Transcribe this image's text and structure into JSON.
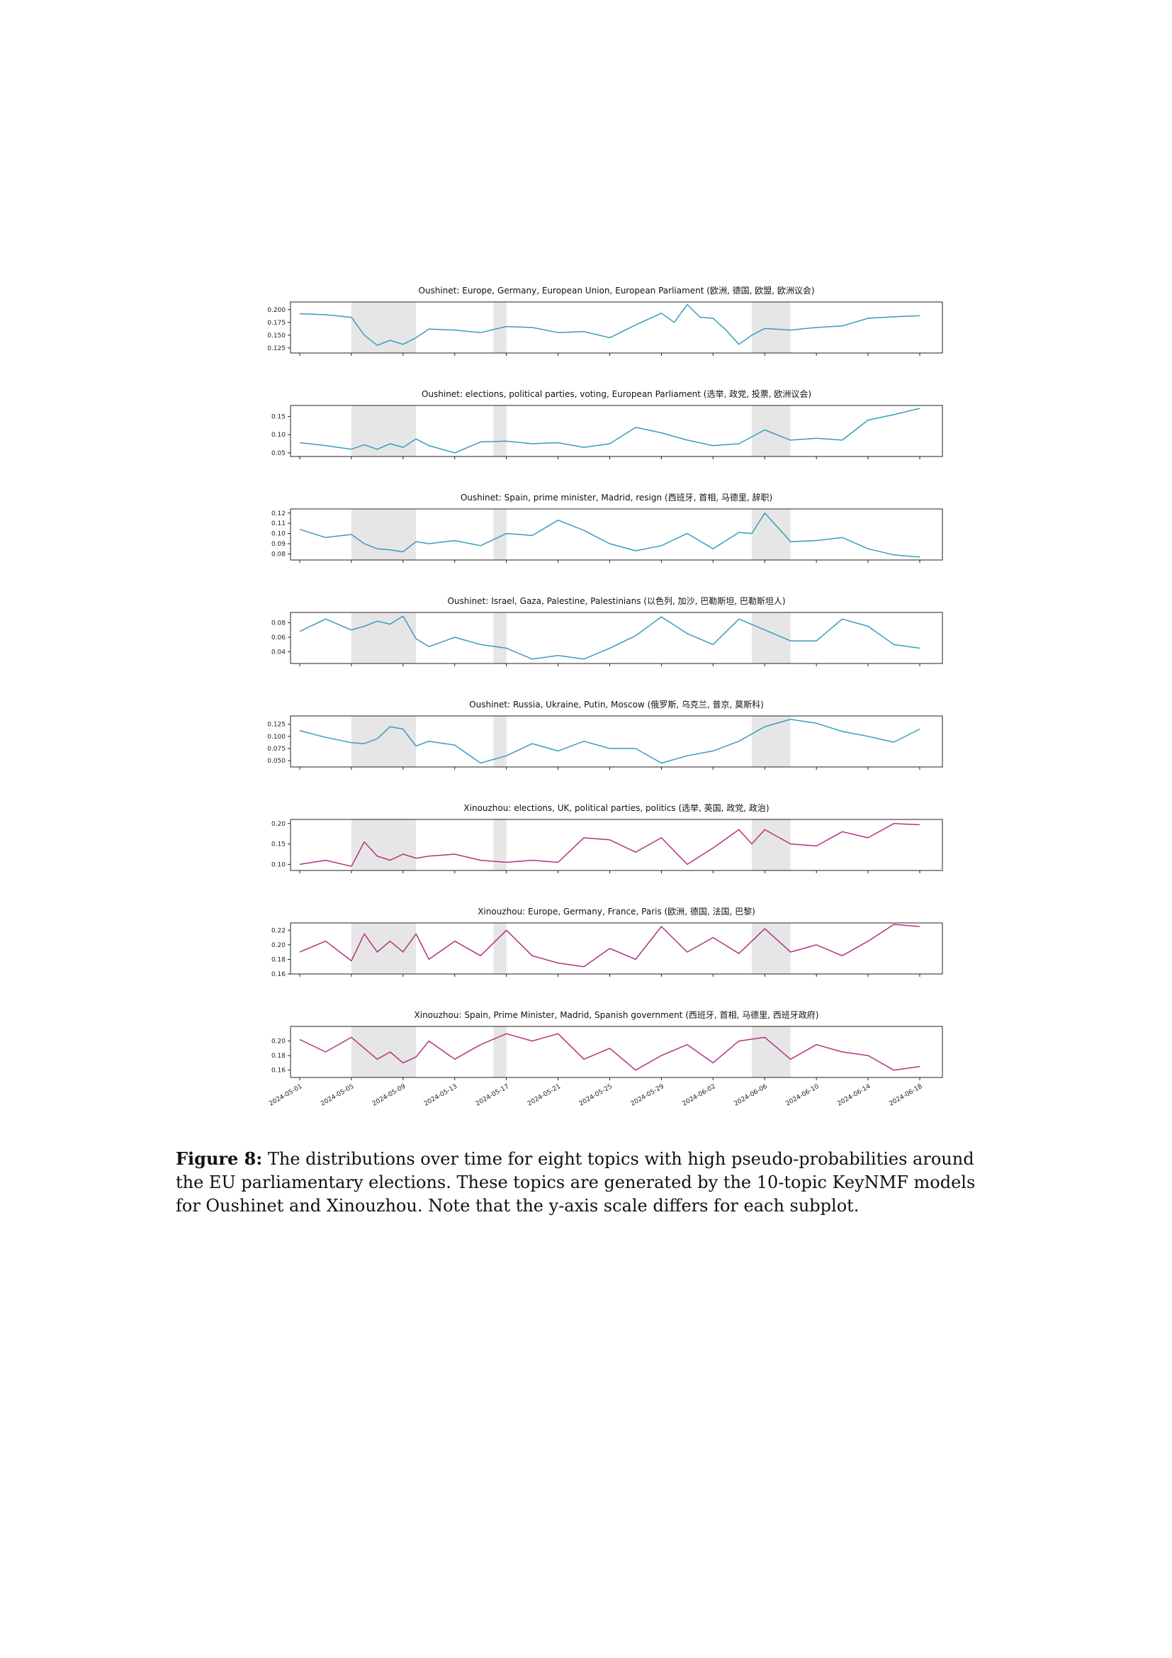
{
  "figure": {
    "caption_label": "Figure 8:",
    "caption_text": "The distributions over time for eight topics with high pseudo-probabilities around the EU parliamentary elections. These topics are generated by the 10-topic KeyNMF models for Oushinet and Xinouzhou. Note that the y-axis scale differs for each subplot."
  },
  "chart_data": {
    "type": "line",
    "x_ticks": [
      "2024-05-01",
      "2024-05-05",
      "2024-05-09",
      "2024-05-13",
      "2024-05-17",
      "2024-05-21",
      "2024-05-25",
      "2024-05-29",
      "2024-06-02",
      "2024-06-06",
      "2024-06-10",
      "2024-06-14",
      "2024-06-18"
    ],
    "x_range": [
      "2024-05-01",
      "2024-06-18"
    ],
    "shaded_spans": [
      [
        "2024-05-05",
        "2024-05-10"
      ],
      [
        "2024-05-16",
        "2024-05-17"
      ],
      [
        "2024-06-05",
        "2024-06-08"
      ]
    ],
    "grid": false,
    "colors": {
      "oushinet": "#3a9cbd",
      "xinouzhou": "#b0347f",
      "shade": "#e6e6e6"
    },
    "subplots": [
      {
        "title": "Oushinet: Europe, Germany, European Union, European Parliament (欧洲, 德国, 欧盟, 欧洲议会)",
        "source": "oushinet",
        "ylim": [
          0.115,
          0.215
        ],
        "yticks": [
          "0.125",
          "0.150",
          "0.175",
          "0.200"
        ],
        "x": [
          "2024-05-01",
          "2024-05-03",
          "2024-05-05",
          "2024-05-06",
          "2024-05-07",
          "2024-05-08",
          "2024-05-09",
          "2024-05-10",
          "2024-05-11",
          "2024-05-13",
          "2024-05-15",
          "2024-05-17",
          "2024-05-19",
          "2024-05-21",
          "2024-05-23",
          "2024-05-25",
          "2024-05-27",
          "2024-05-29",
          "2024-05-30",
          "2024-05-31",
          "2024-06-01",
          "2024-06-02",
          "2024-06-03",
          "2024-06-04",
          "2024-06-05",
          "2024-06-06",
          "2024-06-08",
          "2024-06-10",
          "2024-06-12",
          "2024-06-14",
          "2024-06-16",
          "2024-06-18"
        ],
        "y": [
          0.192,
          0.19,
          0.185,
          0.15,
          0.13,
          0.14,
          0.132,
          0.145,
          0.162,
          0.16,
          0.155,
          0.167,
          0.165,
          0.155,
          0.157,
          0.145,
          0.17,
          0.193,
          0.175,
          0.21,
          0.185,
          0.183,
          0.16,
          0.132,
          0.15,
          0.163,
          0.16,
          0.165,
          0.168,
          0.183,
          0.186,
          0.188
        ]
      },
      {
        "title": "Oushinet: elections, political parties, voting, European Parliament (选举, 政党, 投票, 欧洲议会)",
        "source": "oushinet",
        "ylim": [
          0.04,
          0.18
        ],
        "yticks": [
          "0.05",
          "0.10",
          "0.15"
        ],
        "x": [
          "2024-05-01",
          "2024-05-03",
          "2024-05-05",
          "2024-05-06",
          "2024-05-07",
          "2024-05-08",
          "2024-05-09",
          "2024-05-10",
          "2024-05-11",
          "2024-05-13",
          "2024-05-15",
          "2024-05-17",
          "2024-05-19",
          "2024-05-21",
          "2024-05-23",
          "2024-05-25",
          "2024-05-27",
          "2024-05-29",
          "2024-05-31",
          "2024-06-02",
          "2024-06-04",
          "2024-06-06",
          "2024-06-08",
          "2024-06-10",
          "2024-06-12",
          "2024-06-14",
          "2024-06-16",
          "2024-06-18"
        ],
        "y": [
          0.078,
          0.07,
          0.06,
          0.072,
          0.06,
          0.075,
          0.065,
          0.088,
          0.07,
          0.05,
          0.08,
          0.082,
          0.075,
          0.078,
          0.065,
          0.075,
          0.12,
          0.105,
          0.085,
          0.07,
          0.075,
          0.113,
          0.085,
          0.09,
          0.085,
          0.14,
          0.155,
          0.172
        ]
      },
      {
        "title": "Oushinet: Spain, prime minister, Madrid, resign (西班牙, 首相, 马德里, 辞职)",
        "source": "oushinet",
        "ylim": [
          0.074,
          0.124
        ],
        "yticks": [
          "0.08",
          "0.09",
          "0.10",
          "0.11",
          "0.12"
        ],
        "x": [
          "2024-05-01",
          "2024-05-03",
          "2024-05-05",
          "2024-05-06",
          "2024-05-07",
          "2024-05-08",
          "2024-05-09",
          "2024-05-10",
          "2024-05-11",
          "2024-05-13",
          "2024-05-15",
          "2024-05-17",
          "2024-05-19",
          "2024-05-21",
          "2024-05-23",
          "2024-05-25",
          "2024-05-27",
          "2024-05-29",
          "2024-05-31",
          "2024-06-02",
          "2024-06-04",
          "2024-06-05",
          "2024-06-06",
          "2024-06-08",
          "2024-06-10",
          "2024-06-12",
          "2024-06-14",
          "2024-06-16",
          "2024-06-18"
        ],
        "y": [
          0.104,
          0.096,
          0.099,
          0.09,
          0.085,
          0.084,
          0.082,
          0.092,
          0.09,
          0.093,
          0.088,
          0.1,
          0.098,
          0.113,
          0.103,
          0.09,
          0.083,
          0.088,
          0.1,
          0.085,
          0.101,
          0.1,
          0.12,
          0.092,
          0.093,
          0.096,
          0.085,
          0.079,
          0.077
        ]
      },
      {
        "title": "Oushinet: Israel, Gaza, Palestine, Palestinians (以色列, 加沙, 巴勒斯坦, 巴勒斯坦人)",
        "source": "oushinet",
        "ylim": [
          0.024,
          0.094
        ],
        "yticks": [
          "0.04",
          "0.06",
          "0.08"
        ],
        "x": [
          "2024-05-01",
          "2024-05-03",
          "2024-05-05",
          "2024-05-06",
          "2024-05-07",
          "2024-05-08",
          "2024-05-09",
          "2024-05-10",
          "2024-05-11",
          "2024-05-13",
          "2024-05-15",
          "2024-05-17",
          "2024-05-19",
          "2024-05-21",
          "2024-05-23",
          "2024-05-25",
          "2024-05-27",
          "2024-05-29",
          "2024-05-31",
          "2024-06-02",
          "2024-06-04",
          "2024-06-06",
          "2024-06-08",
          "2024-06-10",
          "2024-06-12",
          "2024-06-14",
          "2024-06-16",
          "2024-06-18"
        ],
        "y": [
          0.068,
          0.085,
          0.07,
          0.075,
          0.082,
          0.078,
          0.089,
          0.058,
          0.047,
          0.06,
          0.05,
          0.045,
          0.03,
          0.035,
          0.03,
          0.045,
          0.062,
          0.088,
          0.065,
          0.05,
          0.085,
          0.07,
          0.055,
          0.055,
          0.085,
          0.075,
          0.05,
          0.045
        ]
      },
      {
        "title": "Oushinet: Russia, Ukraine, Putin, Moscow (俄罗斯, 乌克兰, 普京, 莫斯科)",
        "source": "oushinet",
        "ylim": [
          0.037,
          0.142
        ],
        "yticks": [
          "0.050",
          "0.075",
          "0.100",
          "0.125"
        ],
        "x": [
          "2024-05-01",
          "2024-05-03",
          "2024-05-05",
          "2024-05-06",
          "2024-05-07",
          "2024-05-08",
          "2024-05-09",
          "2024-05-10",
          "2024-05-11",
          "2024-05-13",
          "2024-05-15",
          "2024-05-17",
          "2024-05-19",
          "2024-05-21",
          "2024-05-23",
          "2024-05-25",
          "2024-05-27",
          "2024-05-29",
          "2024-05-31",
          "2024-06-02",
          "2024-06-04",
          "2024-06-06",
          "2024-06-08",
          "2024-06-10",
          "2024-06-12",
          "2024-06-14",
          "2024-06-16",
          "2024-06-18"
        ],
        "y": [
          0.112,
          0.098,
          0.087,
          0.085,
          0.095,
          0.12,
          0.115,
          0.08,
          0.09,
          0.082,
          0.045,
          0.06,
          0.085,
          0.07,
          0.09,
          0.075,
          0.075,
          0.045,
          0.06,
          0.07,
          0.09,
          0.12,
          0.135,
          0.127,
          0.11,
          0.1,
          0.088,
          0.115
        ]
      },
      {
        "title": "Xinouzhou: elections, UK, political parties, politics (选举, 英国, 政党, 政治)",
        "source": "xinouzhou",
        "ylim": [
          0.085,
          0.21
        ],
        "yticks": [
          "0.10",
          "0.15",
          "0.20"
        ],
        "x": [
          "2024-05-01",
          "2024-05-03",
          "2024-05-05",
          "2024-05-06",
          "2024-05-07",
          "2024-05-08",
          "2024-05-09",
          "2024-05-10",
          "2024-05-11",
          "2024-05-13",
          "2024-05-15",
          "2024-05-17",
          "2024-05-19",
          "2024-05-21",
          "2024-05-23",
          "2024-05-25",
          "2024-05-27",
          "2024-05-29",
          "2024-05-31",
          "2024-06-02",
          "2024-06-04",
          "2024-06-05",
          "2024-06-06",
          "2024-06-08",
          "2024-06-10",
          "2024-06-12",
          "2024-06-14",
          "2024-06-16",
          "2024-06-18"
        ],
        "y": [
          0.1,
          0.11,
          0.095,
          0.155,
          0.12,
          0.11,
          0.125,
          0.115,
          0.12,
          0.125,
          0.11,
          0.105,
          0.11,
          0.105,
          0.165,
          0.16,
          0.13,
          0.165,
          0.1,
          0.14,
          0.185,
          0.15,
          0.185,
          0.15,
          0.145,
          0.18,
          0.165,
          0.2,
          0.197
        ]
      },
      {
        "title": "Xinouzhou: Europe, Germany, France, Paris (欧洲, 德国, 法国, 巴黎)",
        "source": "xinouzhou",
        "ylim": [
          0.16,
          0.23
        ],
        "yticks": [
          "0.16",
          "0.18",
          "0.20",
          "0.22"
        ],
        "x": [
          "2024-05-01",
          "2024-05-03",
          "2024-05-05",
          "2024-05-06",
          "2024-05-07",
          "2024-05-08",
          "2024-05-09",
          "2024-05-10",
          "2024-05-11",
          "2024-05-13",
          "2024-05-15",
          "2024-05-17",
          "2024-05-19",
          "2024-05-21",
          "2024-05-23",
          "2024-05-25",
          "2024-05-27",
          "2024-05-29",
          "2024-05-31",
          "2024-06-02",
          "2024-06-04",
          "2024-06-06",
          "2024-06-08",
          "2024-06-10",
          "2024-06-12",
          "2024-06-14",
          "2024-06-16",
          "2024-06-18"
        ],
        "y": [
          0.19,
          0.205,
          0.178,
          0.215,
          0.19,
          0.205,
          0.19,
          0.215,
          0.18,
          0.205,
          0.185,
          0.22,
          0.185,
          0.175,
          0.17,
          0.195,
          0.18,
          0.225,
          0.19,
          0.21,
          0.188,
          0.222,
          0.19,
          0.2,
          0.185,
          0.205,
          0.228,
          0.225
        ]
      },
      {
        "title": "Xinouzhou: Spain, Prime Minister, Madrid, Spanish government (西班牙, 首相, 马德里, 西班牙政府)",
        "source": "xinouzhou",
        "ylim": [
          0.15,
          0.22
        ],
        "yticks": [
          "0.16",
          "0.18",
          "0.20"
        ],
        "x": [
          "2024-05-01",
          "2024-05-03",
          "2024-05-05",
          "2024-05-06",
          "2024-05-07",
          "2024-05-08",
          "2024-05-09",
          "2024-05-10",
          "2024-05-11",
          "2024-05-13",
          "2024-05-15",
          "2024-05-17",
          "2024-05-19",
          "2024-05-21",
          "2024-05-23",
          "2024-05-25",
          "2024-05-27",
          "2024-05-29",
          "2024-05-31",
          "2024-06-02",
          "2024-06-04",
          "2024-06-06",
          "2024-06-08",
          "2024-06-10",
          "2024-06-12",
          "2024-06-14",
          "2024-06-16",
          "2024-06-18"
        ],
        "y": [
          0.202,
          0.185,
          0.205,
          0.19,
          0.175,
          0.185,
          0.17,
          0.178,
          0.2,
          0.175,
          0.195,
          0.21,
          0.2,
          0.21,
          0.175,
          0.19,
          0.16,
          0.18,
          0.195,
          0.17,
          0.2,
          0.205,
          0.175,
          0.195,
          0.185,
          0.18,
          0.16,
          0.165
        ]
      }
    ]
  }
}
